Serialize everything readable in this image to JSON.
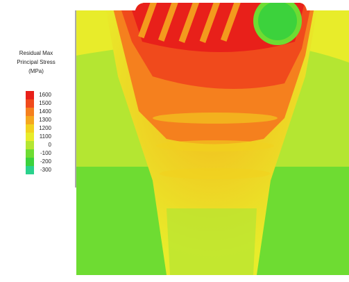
{
  "legend": {
    "title": [
      "Residual Max",
      "Principal Stress",
      "(MPa)"
    ],
    "entries": [
      {
        "label": "1600",
        "color": "#e8201a"
      },
      {
        "label": "1500",
        "color": "#f04a1c"
      },
      {
        "label": "1400",
        "color": "#f5801e"
      },
      {
        "label": "1300",
        "color": "#f5a81e"
      },
      {
        "label": "1200",
        "color": "#f2d21e"
      },
      {
        "label": "1100",
        "color": "#e8ec2a"
      },
      {
        "label": "0",
        "color": "#b4e632"
      },
      {
        "label": "-100",
        "color": "#6edc32"
      },
      {
        "label": "-200",
        "color": "#3cd23c"
      },
      {
        "label": "-300",
        "color": "#2ad28c"
      }
    ]
  }
}
